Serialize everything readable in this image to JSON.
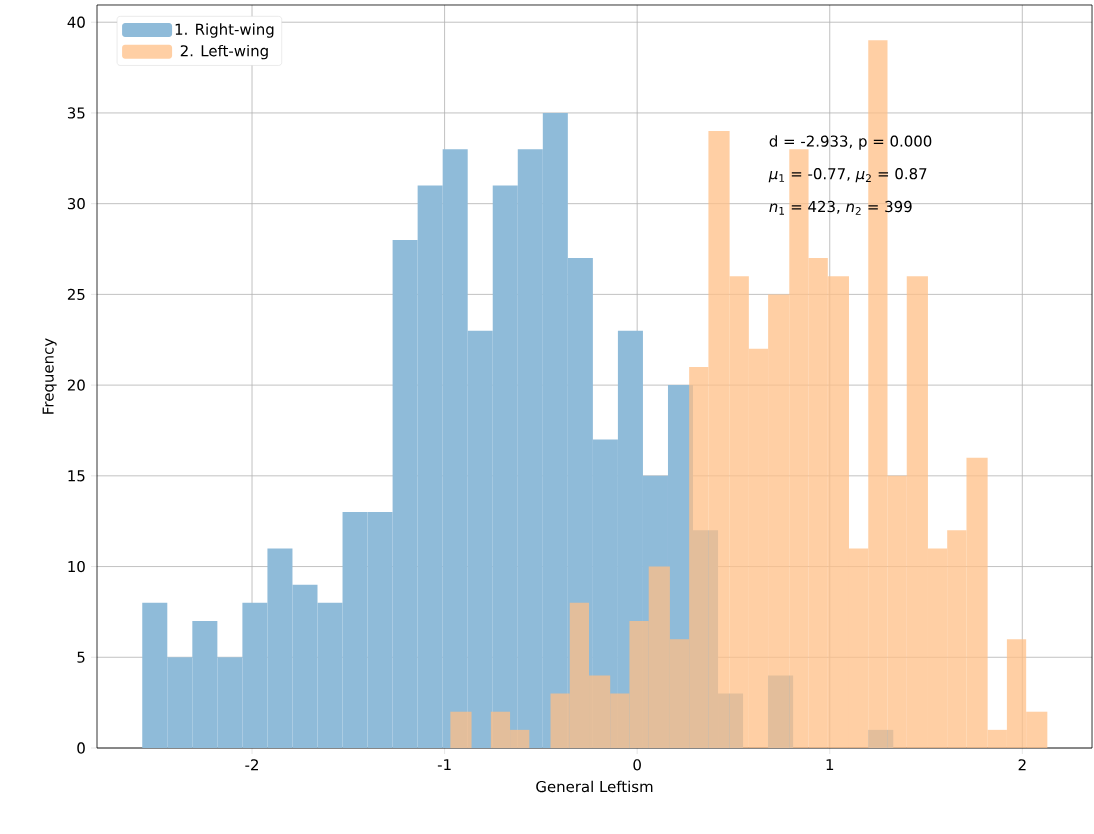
{
  "chart_data": {
    "type": "histogram",
    "xlabel": "General Leftism",
    "ylabel": "Frequency",
    "bins": [
      -2.57,
      -2.44,
      -2.31,
      -2.18,
      -2.05,
      -1.92,
      -1.79,
      -1.66,
      -1.53,
      -1.4,
      -1.27,
      -1.14,
      -1.01,
      -0.88,
      -0.75,
      -0.62,
      -0.49,
      -0.36,
      -0.23,
      -0.1,
      0.03,
      0.16,
      0.29,
      0.42,
      0.55,
      0.68,
      0.81,
      0.94,
      1.07,
      1.2,
      1.33
    ],
    "series": [
      {
        "name": "1. Right-wing",
        "color": "#8fbbd9",
        "values": [
          8,
          5,
          7,
          5,
          8,
          11,
          9,
          8,
          13,
          13,
          28,
          31,
          33,
          23,
          31,
          33,
          35,
          27,
          17,
          23,
          15,
          20,
          12,
          3,
          0,
          4,
          0,
          0,
          0,
          1
        ]
      },
      {
        "name": "2. Left-wing",
        "color": "#ffbf86",
        "bins": [
          -0.97,
          -0.86,
          -0.76,
          -0.66,
          -0.56,
          -0.45,
          -0.35,
          -0.25,
          -0.14,
          -0.04,
          0.06,
          0.17,
          0.27,
          0.37,
          0.48,
          0.58,
          0.68,
          0.79,
          0.89,
          0.99,
          1.1,
          1.2,
          1.3,
          1.4,
          1.51,
          1.61,
          1.71,
          1.82,
          1.92,
          2.02,
          2.13
        ],
        "values": [
          2,
          0,
          2,
          1,
          0,
          3,
          8,
          4,
          3,
          7,
          10,
          6,
          21,
          34,
          26,
          22,
          25,
          33,
          27,
          26,
          11,
          39,
          15,
          26,
          11,
          12,
          16,
          1,
          6,
          2
        ]
      }
    ],
    "annotations": [
      "d = -2.933, p = 0.000",
      "*μ*$_{1}$ = -0.77, *μ*$_{2}$ = 0.87",
      "*n*$_{1}$ = 423, *n*$_{2}$ = 399"
    ],
    "xlim": [
      -2.805,
      2.362
    ],
    "ylim": [
      0,
      40.95
    ],
    "xticks": [
      -2,
      -1,
      0,
      1,
      2
    ],
    "yticks": [
      0,
      5,
      10,
      15,
      20,
      25,
      30,
      35,
      40
    ],
    "grid": true,
    "legend": "top left"
  }
}
